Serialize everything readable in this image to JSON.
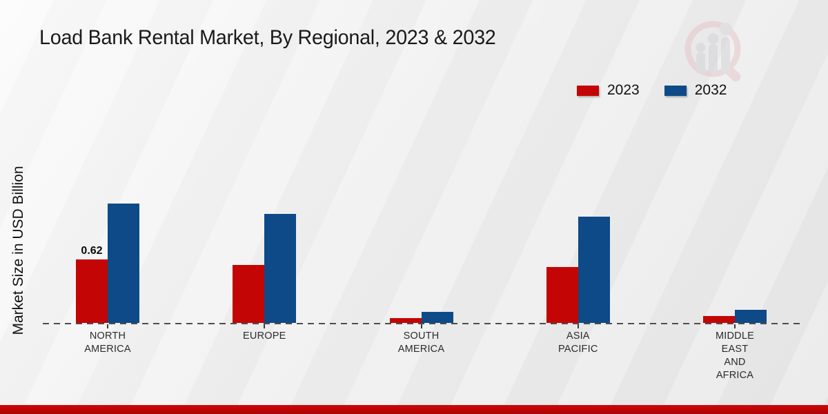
{
  "page": {
    "title": "Load Bank Rental Market, By Regional, 2023 & 2032"
  },
  "chart_data": {
    "type": "bar",
    "title": "Load Bank Rental Market, By Regional, 2023 & 2032",
    "xlabel": "",
    "ylabel": "Market Size in USD Billion",
    "categories": [
      "North America",
      "Europe",
      "South America",
      "Asia Pacific",
      "Middle East and Africa"
    ],
    "category_label_lines": [
      [
        "NORTH",
        "AMERICA"
      ],
      [
        "EUROPE"
      ],
      [
        "SOUTH",
        "AMERICA"
      ],
      [
        "ASIA",
        "PACIFIC"
      ],
      [
        "MIDDLE",
        "EAST",
        "AND",
        "AFRICA"
      ]
    ],
    "series": [
      {
        "name": "2023",
        "color": "#c40505",
        "values": [
          0.62,
          0.57,
          0.05,
          0.55,
          0.07
        ]
      },
      {
        "name": "2032",
        "color": "#0d4a87",
        "values": [
          1.17,
          1.07,
          0.11,
          1.04,
          0.13
        ]
      }
    ],
    "data_labels": [
      {
        "series": "2023",
        "category": "North America",
        "text": "0.62"
      }
    ],
    "ylim": [
      0,
      1.3
    ],
    "grid": false,
    "axis_line_style": "dashed-baseline",
    "legend_position": "top-right",
    "colors": {
      "series_2023": "#c40505",
      "series_2032": "#0d4a87",
      "baseline": "#4d4d4d",
      "footer_accent": "#b80404",
      "title_text": "#1a1a1a"
    }
  },
  "watermark": {
    "name": "market-research-magnifier-logo"
  }
}
